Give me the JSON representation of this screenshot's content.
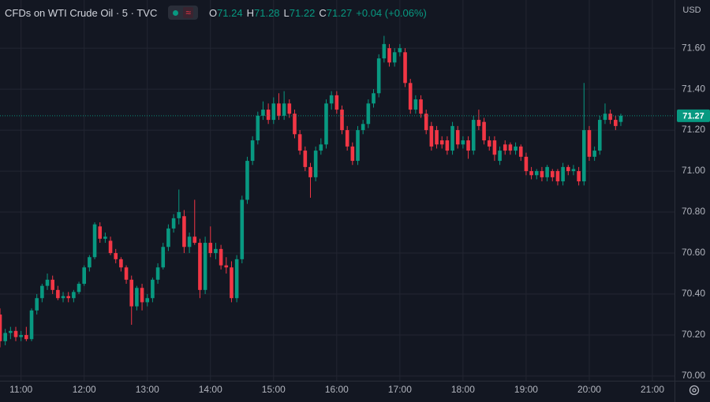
{
  "chart_data": {
    "type": "candlestick",
    "title": "CFDs on WTI Crude Oil · 5 · TVC",
    "legend_labels": {
      "open": "O",
      "high": "H",
      "low": "L",
      "close": "C"
    },
    "change": "+0.04 (+0.06%)",
    "currency": "USD",
    "up_color": "#089981",
    "down_color": "#f23645",
    "grid": true,
    "ylim": [
      69.977,
      71.835
    ],
    "yticks": [
      {
        "value": 70,
        "label": "70.00"
      },
      {
        "value": 70.2,
        "label": "70.20"
      },
      {
        "value": 70.4,
        "label": "70.40"
      },
      {
        "value": 70.6,
        "label": "70.60"
      },
      {
        "value": 70.8,
        "label": "70.80"
      },
      {
        "value": 71,
        "label": "71.00"
      },
      {
        "value": 71.2,
        "label": "71.20"
      },
      {
        "value": 71.4,
        "label": "71.40"
      },
      {
        "value": 71.6,
        "label": "71.60"
      }
    ],
    "xlim": [
      "10:40",
      "21:21"
    ],
    "xticks": [
      "11:00",
      "12:00",
      "13:00",
      "14:00",
      "15:00",
      "16:00",
      "17:00",
      "18:00",
      "19:00",
      "20:00",
      "21:00"
    ],
    "x": [
      "10:40",
      "10:45",
      "10:50",
      "10:55",
      "11:00",
      "11:05",
      "11:10",
      "11:15",
      "11:20",
      "11:25",
      "11:30",
      "11:35",
      "11:40",
      "11:45",
      "11:50",
      "11:55",
      "12:00",
      "12:05",
      "12:10",
      "12:15",
      "12:20",
      "12:25",
      "12:30",
      "12:35",
      "12:40",
      "12:45",
      "12:50",
      "12:55",
      "13:00",
      "13:05",
      "13:10",
      "13:15",
      "13:20",
      "13:25",
      "13:30",
      "13:35",
      "13:40",
      "13:45",
      "13:50",
      "13:55",
      "14:00",
      "14:05",
      "14:10",
      "14:15",
      "14:20",
      "14:25",
      "14:30",
      "14:35",
      "14:40",
      "14:45",
      "14:50",
      "14:55",
      "15:00",
      "15:05",
      "15:10",
      "15:15",
      "15:20",
      "15:25",
      "15:30",
      "15:35",
      "15:40",
      "15:45",
      "15:50",
      "15:55",
      "16:00",
      "16:05",
      "16:10",
      "16:15",
      "16:20",
      "16:25",
      "16:30",
      "16:35",
      "16:40",
      "16:45",
      "16:50",
      "16:55",
      "17:00",
      "17:05",
      "17:10",
      "17:15",
      "17:20",
      "17:25",
      "17:30",
      "17:35",
      "17:40",
      "17:45",
      "17:50",
      "17:55",
      "18:00",
      "18:05",
      "18:10",
      "18:15",
      "18:20",
      "18:25",
      "18:30",
      "18:35",
      "18:40",
      "18:45",
      "18:50",
      "18:55",
      "19:00",
      "19:05",
      "19:10",
      "19:15",
      "19:20",
      "19:25",
      "19:30",
      "19:35",
      "19:40",
      "19:45",
      "19:50",
      "19:55",
      "20:00",
      "20:05",
      "20:10",
      "20:15",
      "20:20",
      "20:25",
      "20:30"
    ],
    "open": [
      70.3,
      70.17,
      70.21,
      70.22,
      70.19,
      70.2,
      70.18,
      70.32,
      70.38,
      70.44,
      70.47,
      70.42,
      70.38,
      70.39,
      70.38,
      70.41,
      70.45,
      70.53,
      70.58,
      70.73,
      70.67,
      70.66,
      70.6,
      70.57,
      70.53,
      70.47,
      70.34,
      70.43,
      70.36,
      70.38,
      70.47,
      70.53,
      70.63,
      70.72,
      70.77,
      70.78,
      70.63,
      70.68,
      70.65,
      70.42,
      70.65,
      70.6,
      70.62,
      70.54,
      70.53,
      70.38,
      70.57,
      70.86,
      71.05,
      71.15,
      71.27,
      71.3,
      71.25,
      71.33,
      71.27,
      71.33,
      71.28,
      71.18,
      71.1,
      71.02,
      70.97,
      71.1,
      71.13,
      71.33,
      71.37,
      71.3,
      71.2,
      71.12,
      71.05,
      71.2,
      71.23,
      71.33,
      71.38,
      71.55,
      71.6,
      71.53,
      71.58,
      71.58,
      71.43,
      71.3,
      71.35,
      71.28,
      71.22,
      71.2,
      71.15,
      71.15,
      71.1,
      71.2,
      71.13,
      71.15,
      71.1,
      71.25,
      71.24,
      71.15,
      71.15,
      71.05,
      71.13,
      71.13,
      71.1,
      71.12,
      71.07,
      71.0,
      70.98,
      71.0,
      70.97,
      71.0,
      71.0,
      70.95,
      71.02,
      71.0,
      71.0,
      70.95,
      71.2,
      71.07,
      71.1,
      71.25,
      71.28,
      71.25,
      71.24
    ],
    "high": [
      70.33,
      70.23,
      70.24,
      70.24,
      70.22,
      70.24,
      70.33,
      70.4,
      70.45,
      70.5,
      70.49,
      70.44,
      70.41,
      70.41,
      70.42,
      70.46,
      70.54,
      70.59,
      70.75,
      70.75,
      70.7,
      70.68,
      70.62,
      70.58,
      70.54,
      70.49,
      70.44,
      70.45,
      70.4,
      70.48,
      70.55,
      70.65,
      70.74,
      70.79,
      70.91,
      70.81,
      70.7,
      70.86,
      70.67,
      70.68,
      70.73,
      70.65,
      70.64,
      70.58,
      70.56,
      70.59,
      70.88,
      71.07,
      71.17,
      71.29,
      71.34,
      71.33,
      71.36,
      71.38,
      71.39,
      71.35,
      71.3,
      71.2,
      71.12,
      71.04,
      71.12,
      71.16,
      71.35,
      71.39,
      71.39,
      71.32,
      71.22,
      71.14,
      71.22,
      71.25,
      71.35,
      71.4,
      71.57,
      71.66,
      71.62,
      71.6,
      71.62,
      71.6,
      71.45,
      71.37,
      71.37,
      71.3,
      71.24,
      71.22,
      71.17,
      71.17,
      71.24,
      71.22,
      71.17,
      71.17,
      71.27,
      71.3,
      71.26,
      71.17,
      71.17,
      71.12,
      71.15,
      71.14,
      71.14,
      71.13,
      71.09,
      71.02,
      71.01,
      71.02,
      71.03,
      71.01,
      71.01,
      71.04,
      71.03,
      71.03,
      71.02,
      71.43,
      71.22,
      71.12,
      71.27,
      71.33,
      71.3,
      71.27,
      71.28
    ],
    "low": [
      70.14,
      70.15,
      70.18,
      70.17,
      70.17,
      70.17,
      70.17,
      70.3,
      70.36,
      70.42,
      70.4,
      70.37,
      70.36,
      70.36,
      70.36,
      70.4,
      70.44,
      70.51,
      70.57,
      70.65,
      70.65,
      70.59,
      70.55,
      70.51,
      70.45,
      70.25,
      70.32,
      70.32,
      70.34,
      70.36,
      70.45,
      70.52,
      70.61,
      70.7,
      70.74,
      70.6,
      70.6,
      70.64,
      70.38,
      70.4,
      70.58,
      70.57,
      70.52,
      70.5,
      70.36,
      70.36,
      70.55,
      70.84,
      71.03,
      71.13,
      71.25,
      71.23,
      71.23,
      71.25,
      71.25,
      71.26,
      71.16,
      71.08,
      71.0,
      70.87,
      70.95,
      71.08,
      71.11,
      71.3,
      71.28,
      71.18,
      71.1,
      71.03,
      71.03,
      71.18,
      71.21,
      71.31,
      71.36,
      71.53,
      71.51,
      71.51,
      71.56,
      71.41,
      71.28,
      71.28,
      71.26,
      71.18,
      71.1,
      71.11,
      71.11,
      71.08,
      71.08,
      71.11,
      71.11,
      71.06,
      71.08,
      71.2,
      71.13,
      71.1,
      71.05,
      71.03,
      71.08,
      71.08,
      71.08,
      71.05,
      70.98,
      70.96,
      70.96,
      70.95,
      70.95,
      70.95,
      70.93,
      70.93,
      70.98,
      70.98,
      70.93,
      70.93,
      71.05,
      71.05,
      71.08,
      71.23,
      71.23,
      71.2,
      71.22
    ],
    "close": [
      70.17,
      70.21,
      70.22,
      70.19,
      70.2,
      70.18,
      70.32,
      70.38,
      70.44,
      70.47,
      70.42,
      70.38,
      70.39,
      70.38,
      70.41,
      70.45,
      70.53,
      70.58,
      70.74,
      70.67,
      70.68,
      70.6,
      70.57,
      70.53,
      70.47,
      70.34,
      70.43,
      70.36,
      70.38,
      70.47,
      70.53,
      70.63,
      70.72,
      70.77,
      70.8,
      70.63,
      70.68,
      70.65,
      70.42,
      70.65,
      70.6,
      70.62,
      70.54,
      70.53,
      70.38,
      70.57,
      70.86,
      71.05,
      71.15,
      71.27,
      71.3,
      71.25,
      71.33,
      71.27,
      71.33,
      71.28,
      71.18,
      71.1,
      71.02,
      70.97,
      71.1,
      71.13,
      71.33,
      71.37,
      71.3,
      71.2,
      71.12,
      71.05,
      71.2,
      71.23,
      71.33,
      71.38,
      71.55,
      71.62,
      71.53,
      71.58,
      71.6,
      71.43,
      71.3,
      71.35,
      71.28,
      71.2,
      71.12,
      71.13,
      71.13,
      71.1,
      71.22,
      71.13,
      71.15,
      71.1,
      71.25,
      71.22,
      71.15,
      71.12,
      71.08,
      71.1,
      71.1,
      71.1,
      71.12,
      71.07,
      71.0,
      70.98,
      71.0,
      70.97,
      71.02,
      70.97,
      70.95,
      71.02,
      71.0,
      71.01,
      70.95,
      71.2,
      71.07,
      71.1,
      71.25,
      71.28,
      71.25,
      71.22,
      71.27
    ]
  }
}
